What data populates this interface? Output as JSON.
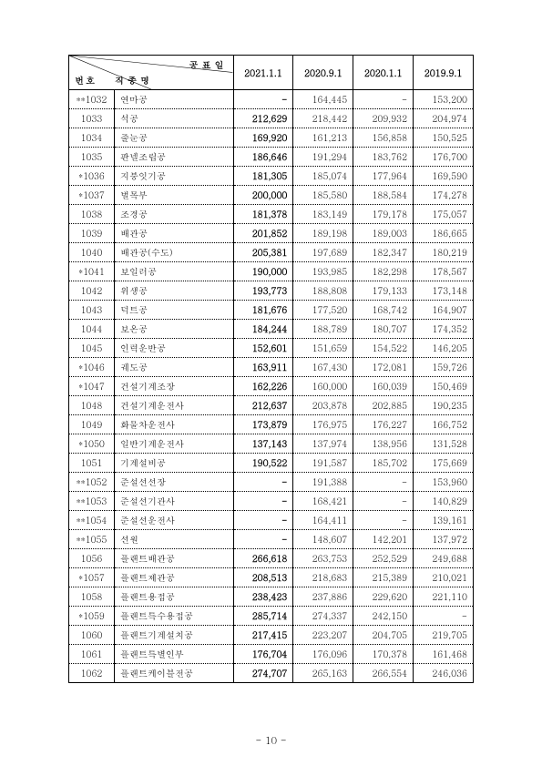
{
  "table": {
    "header": {
      "top_label": "공표일",
      "left_label": "번호",
      "mid_label": "직종명",
      "dates": [
        "2021.1.1",
        "2020.9.1",
        "2020.1.1",
        "2019.9.1"
      ]
    },
    "rows": [
      {
        "no": "**1032",
        "name": "연마공",
        "v": [
          "-",
          "164,445",
          "-",
          "153,200"
        ]
      },
      {
        "no": "1033",
        "name": "석공",
        "v": [
          "212,629",
          "218,442",
          "209,932",
          "204,974"
        ]
      },
      {
        "no": "1034",
        "name": "줄눈공",
        "v": [
          "169,920",
          "161,213",
          "156,858",
          "150,525"
        ]
      },
      {
        "no": "1035",
        "name": "판넬조립공",
        "v": [
          "186,646",
          "191,294",
          "183,762",
          "176,700"
        ]
      },
      {
        "no": "*1036",
        "name": "지붕잇기공",
        "v": [
          "181,305",
          "185,074",
          "177,964",
          "169,590"
        ]
      },
      {
        "no": "*1037",
        "name": "벌목부",
        "v": [
          "200,000",
          "185,580",
          "188,584",
          "174,278"
        ]
      },
      {
        "no": "1038",
        "name": "조경공",
        "v": [
          "181,378",
          "183,149",
          "179,178",
          "175,057"
        ]
      },
      {
        "no": "1039",
        "name": "배관공",
        "v": [
          "201,852",
          "189,198",
          "189,003",
          "186,665"
        ]
      },
      {
        "no": "1040",
        "name": "배관공(수도)",
        "v": [
          "205,381",
          "197,689",
          "182,347",
          "180,219"
        ]
      },
      {
        "no": "*1041",
        "name": "보일러공",
        "v": [
          "190,000",
          "193,985",
          "182,298",
          "178,567"
        ]
      },
      {
        "no": "1042",
        "name": "위생공",
        "v": [
          "193,773",
          "188,808",
          "179,133",
          "173,148"
        ]
      },
      {
        "no": "1043",
        "name": "덕트공",
        "v": [
          "181,676",
          "177,520",
          "168,742",
          "164,907"
        ]
      },
      {
        "no": "1044",
        "name": "보온공",
        "v": [
          "184,244",
          "188,789",
          "180,707",
          "174,352"
        ]
      },
      {
        "no": "1045",
        "name": "인력운반공",
        "v": [
          "152,601",
          "151,659",
          "154,522",
          "146,205"
        ]
      },
      {
        "no": "*1046",
        "name": "궤도공",
        "v": [
          "163,911",
          "167,430",
          "172,081",
          "159,726"
        ]
      },
      {
        "no": "*1047",
        "name": "건설기계조장",
        "v": [
          "162,226",
          "160,000",
          "160,039",
          "150,469"
        ]
      },
      {
        "no": "1048",
        "name": "건설기계운전사",
        "v": [
          "212,637",
          "203,878",
          "202,885",
          "190,235"
        ]
      },
      {
        "no": "1049",
        "name": "화물차운전사",
        "v": [
          "173,879",
          "176,975",
          "176,227",
          "166,752"
        ]
      },
      {
        "no": "*1050",
        "name": "일반기계운전사",
        "v": [
          "137,143",
          "137,974",
          "138,956",
          "131,528"
        ]
      },
      {
        "no": "1051",
        "name": "기계설비공",
        "v": [
          "190,522",
          "191,587",
          "185,702",
          "175,669"
        ]
      },
      {
        "no": "**1052",
        "name": "준설선선장",
        "v": [
          "-",
          "191,388",
          "-",
          "153,960"
        ]
      },
      {
        "no": "**1053",
        "name": "준설선기관사",
        "v": [
          "-",
          "168,421",
          "-",
          "140,829"
        ]
      },
      {
        "no": "**1054",
        "name": "준설선운전사",
        "v": [
          "-",
          "164,411",
          "-",
          "139,161"
        ]
      },
      {
        "no": "**1055",
        "name": "선원",
        "v": [
          "-",
          "148,607",
          "142,201",
          "137,972"
        ]
      },
      {
        "no": "1056",
        "name": "플랜트배관공",
        "v": [
          "266,618",
          "263,753",
          "252,529",
          "249,688"
        ]
      },
      {
        "no": "*1057",
        "name": "플랜트제관공",
        "v": [
          "208,513",
          "218,683",
          "215,389",
          "210,021"
        ]
      },
      {
        "no": "1058",
        "name": "플랜트용접공",
        "v": [
          "238,423",
          "237,886",
          "229,620",
          "221,110"
        ]
      },
      {
        "no": "*1059",
        "name": "플랜트특수용접공",
        "v": [
          "285,714",
          "274,337",
          "242,150",
          "-"
        ]
      },
      {
        "no": "1060",
        "name": "플랜트기계설치공",
        "v": [
          "217,415",
          "223,207",
          "204,705",
          "219,705"
        ]
      },
      {
        "no": "1061",
        "name": "플랜트특별인부",
        "v": [
          "176,704",
          "176,096",
          "170,378",
          "161,468"
        ]
      },
      {
        "no": "1062",
        "name": "플랜트케이블전공",
        "v": [
          "274,707",
          "265,163",
          "266,554",
          "246,036"
        ]
      }
    ]
  },
  "page_number": "- 10 -"
}
